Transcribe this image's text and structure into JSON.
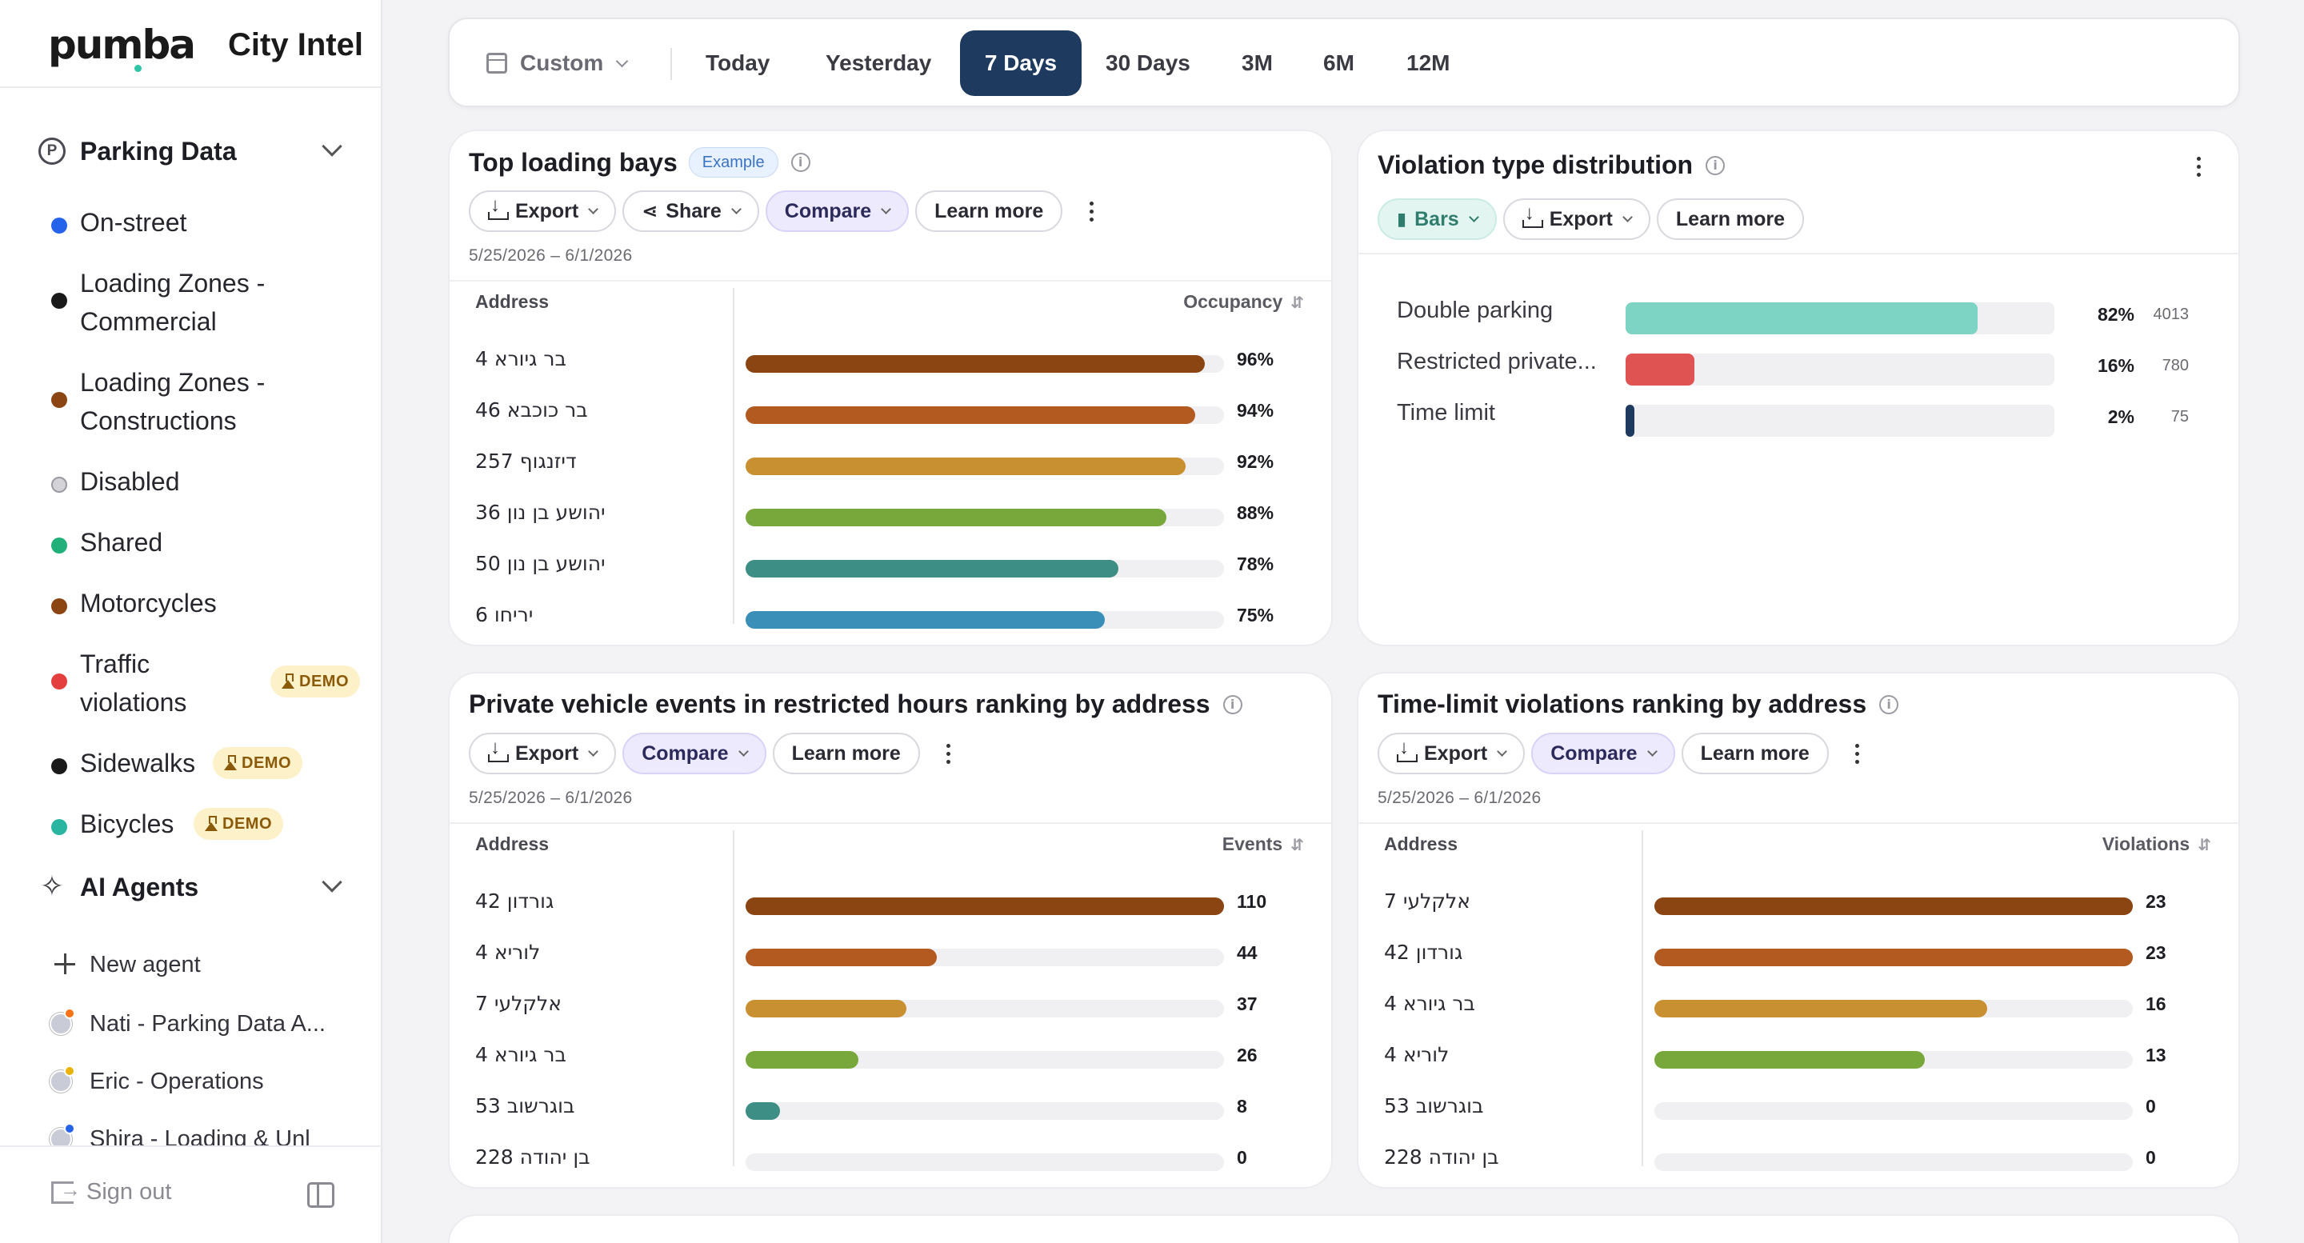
{
  "brand": {
    "logo": "pumba",
    "product": "City Intel"
  },
  "sidebar": {
    "parking": {
      "label": "Parking Data",
      "icon": "parking-icon",
      "items": [
        {
          "label": "On-street",
          "color": "#2563eb"
        },
        {
          "label": "Loading Zones - Commercial",
          "line1": "Loading Zones -",
          "line2": "Commercial",
          "color": "#1a1a1a"
        },
        {
          "label": "Loading Zones - Constructions",
          "line1": "Loading Zones -",
          "line2": "Constructions",
          "color": "#8b4513"
        },
        {
          "label": "Disabled",
          "color": "#d4d4d8"
        },
        {
          "label": "Shared",
          "color": "#22b07a"
        },
        {
          "label": "Motorcycles",
          "color": "#8b4513"
        },
        {
          "label": "Traffic violations",
          "line1": "Traffic",
          "line2": "violations",
          "color": "#e53e3e",
          "badge": "DEMO"
        },
        {
          "label": "Sidewalks",
          "color": "#1a1a1a",
          "badge": "DEMO"
        },
        {
          "label": "Bicycles",
          "color": "#2ab5a0",
          "badge": "DEMO"
        }
      ]
    },
    "agents": {
      "label": "AI Agents",
      "icon": "sparkle-icon",
      "new_agent": "New agent",
      "items": [
        {
          "label": "Nati - Parking Data A...",
          "status_color": "#f97316"
        },
        {
          "label": "Eric - Operations",
          "status_color": "#eab308"
        },
        {
          "label": "Shira - Loading & Unl",
          "status_color": "#2563eb"
        }
      ]
    },
    "sign_out": "Sign out"
  },
  "range": {
    "custom": "Custom",
    "options": [
      "Today",
      "Yesterday",
      "7 Days",
      "30 Days",
      "3M",
      "6M",
      "12M"
    ],
    "selected": "7 Days"
  },
  "common": {
    "export": "Export",
    "share": "Share",
    "compare": "Compare",
    "learn_more": "Learn more",
    "bars": "Bars",
    "address": "Address",
    "date_range": "5/25/2026 – 6/1/2026"
  },
  "cards": {
    "loading_bays": {
      "title": "Top loading bays",
      "badge": "Example",
      "metric": "Occupancy",
      "rows": [
        {
          "address": "בר גיורא 4",
          "value": 96,
          "display": "96%",
          "color": "#8b4513"
        },
        {
          "address": "בר כוכבא 46",
          "value": 94,
          "display": "94%",
          "color": "#b25a20"
        },
        {
          "address": "דיזנגוף 257",
          "value": 92,
          "display": "92%",
          "color": "#c99032"
        },
        {
          "address": "יהושע בן נון 36",
          "value": 88,
          "display": "88%",
          "color": "#78a83b"
        },
        {
          "address": "יהושע בן נון 50",
          "value": 78,
          "display": "78%",
          "color": "#3d8e84"
        },
        {
          "address": "יריחו 6",
          "value": 75,
          "display": "75%",
          "color": "#3a8fb8"
        }
      ]
    },
    "violation_types": {
      "title": "Violation type distribution",
      "rows": [
        {
          "label": "Double parking",
          "share": 0.82,
          "pct": "82%",
          "count": "4013",
          "color": "#7dd3c4"
        },
        {
          "label": "Restricted private...",
          "share": 0.16,
          "pct": "16%",
          "count": "780",
          "color": "#e05353"
        },
        {
          "label": "Time limit",
          "share": 0.02,
          "pct": "2%",
          "count": "75",
          "color": "#1e3a5f"
        }
      ]
    },
    "private_events": {
      "title": "Private vehicle events in restricted hours ranking by address",
      "metric": "Events",
      "max": 110,
      "rows": [
        {
          "address": "גורדון 42",
          "value": 110,
          "display": "110",
          "color": "#8b4513"
        },
        {
          "address": "לוריא 4",
          "value": 44,
          "display": "44",
          "color": "#b25a20"
        },
        {
          "address": "אלקלעי 7",
          "value": 37,
          "display": "37",
          "color": "#c99032"
        },
        {
          "address": "בר גיורא 4",
          "value": 26,
          "display": "26",
          "color": "#78a83b"
        },
        {
          "address": "בוגרשוב 53",
          "value": 8,
          "display": "8",
          "color": "#3d8e84"
        },
        {
          "address": "בן יהודה 228",
          "value": 0,
          "display": "0",
          "color": "#3a8fb8"
        }
      ]
    },
    "time_limit": {
      "title": "Time-limit violations ranking by address",
      "metric": "Violations",
      "max": 23,
      "rows": [
        {
          "address": "אלקלעי 7",
          "value": 23,
          "display": "23",
          "color": "#8b4513"
        },
        {
          "address": "גורדון 42",
          "value": 23,
          "display": "23",
          "color": "#b25a20"
        },
        {
          "address": "בר גיורא 4",
          "value": 16,
          "display": "16",
          "color": "#c99032"
        },
        {
          "address": "לוריא 4",
          "value": 13,
          "display": "13",
          "color": "#78a83b"
        },
        {
          "address": "בוגרשוב 53",
          "value": 0,
          "display": "0",
          "color": "#3d8e84"
        },
        {
          "address": "בן יהודה 228",
          "value": 0,
          "display": "0",
          "color": "#3a8fb8"
        }
      ]
    }
  }
}
